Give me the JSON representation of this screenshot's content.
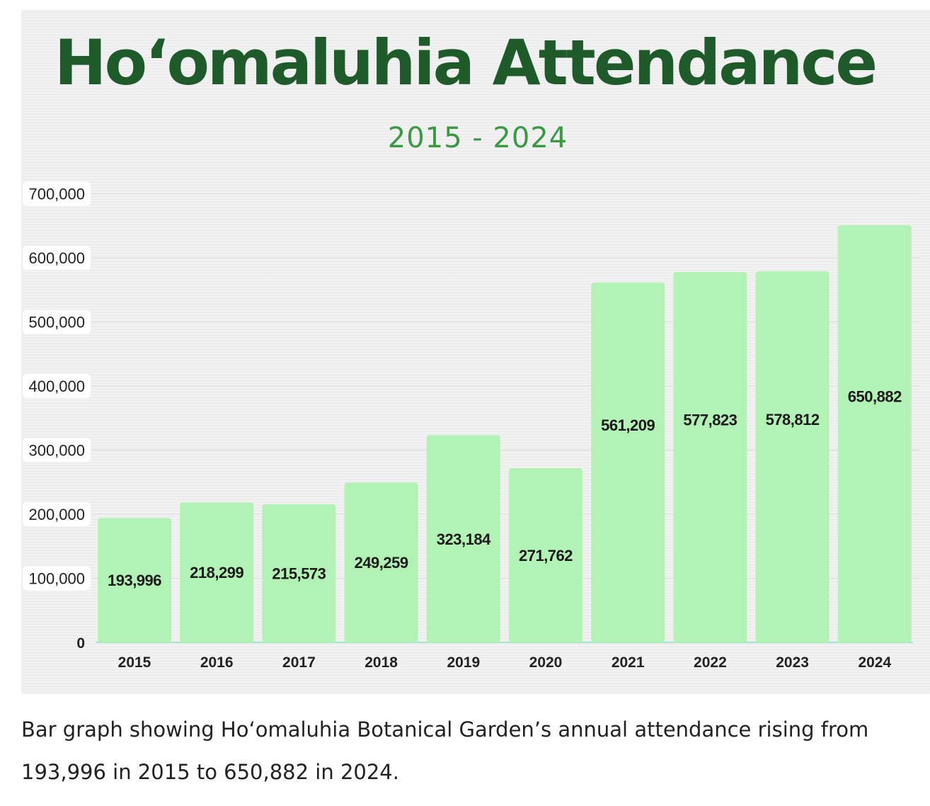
{
  "chart_data": {
    "type": "bar",
    "title": "Hoʻomaluhia Attendance",
    "subtitle": "2015 - 2024",
    "xlabel": "",
    "ylabel": "",
    "ylim": [
      0,
      700000
    ],
    "yticks": [
      {
        "value": 0,
        "label": "0"
      },
      {
        "value": 100000,
        "label": "100,000"
      },
      {
        "value": 200000,
        "label": "200,000"
      },
      {
        "value": 300000,
        "label": "300,000"
      },
      {
        "value": 400000,
        "label": "400,000"
      },
      {
        "value": 500000,
        "label": "500,000"
      },
      {
        "value": 600000,
        "label": "600,000"
      },
      {
        "value": 700000,
        "label": "700,000"
      }
    ],
    "categories": [
      "2015",
      "2016",
      "2017",
      "2018",
      "2019",
      "2020",
      "2021",
      "2022",
      "2023",
      "2024"
    ],
    "values": [
      193996,
      218299,
      215573,
      249259,
      323184,
      271762,
      561209,
      577823,
      578812,
      650882
    ],
    "value_labels": [
      "193,996",
      "218,299",
      "215,573",
      "249,259",
      "323,184",
      "271,762",
      "561,209",
      "577,823",
      "578,812",
      "650,882"
    ],
    "grid": true,
    "legend": "none"
  },
  "colors": {
    "bar": "#b3f2b5",
    "title": "#1f5a2a",
    "subtitle": "#3a9a44",
    "text": "#222222"
  },
  "caption": "Bar graph showing Hoʻomaluhia Botanical Garden’s annual attendance rising from 193,996 in 2015 to 650,882 in 2024."
}
